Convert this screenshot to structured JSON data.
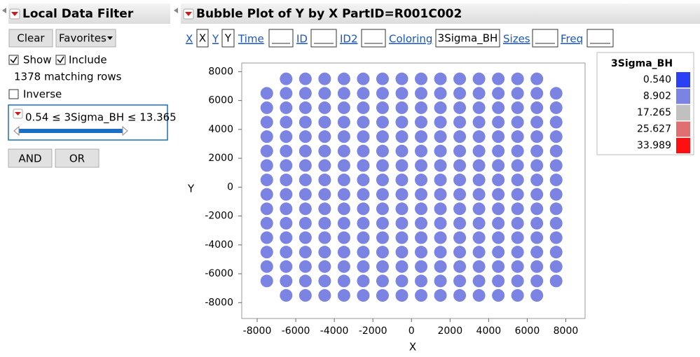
{
  "filter_panel": {
    "title": "Local Data Filter",
    "clear": "Clear",
    "favorites": "Favorites",
    "show": "Show",
    "include": "Include",
    "matching": "1378 matching rows",
    "inverse": "Inverse",
    "condition": "0.54 ≤ 3Sigma_BH ≤ 13.365",
    "and": "AND",
    "or": "OR"
  },
  "toolbar": {
    "roles": [
      {
        "label": "X",
        "value": "X"
      },
      {
        "label": "Y",
        "value": "Y"
      },
      {
        "label": "Time"
      },
      {
        "label": "ID"
      },
      {
        "label": "ID2"
      },
      {
        "label": "Coloring",
        "value": "3Sigma_BH"
      },
      {
        "label": "Sizes"
      },
      {
        "label": "Freq"
      }
    ]
  },
  "chart_data": {
    "type": "bubble",
    "title": "Bubble Plot of Y by X PartID=R001C002",
    "x_label": "X",
    "y_label": "Y",
    "color": "#7b84e2",
    "x": [
      -6500,
      -5500,
      -4500,
      -3500,
      -2500,
      -1500,
      -500,
      500,
      1500,
      2500,
      3500,
      4500,
      5500,
      6500,
      -7500,
      -6500,
      -5500,
      -4500,
      -3500,
      -2500,
      -1500,
      -500,
      500,
      1500,
      2500,
      3500,
      4500,
      5500,
      6500,
      7500,
      -7500,
      -6500,
      -5500,
      -4500,
      -3500,
      -2500,
      -1500,
      -500,
      500,
      1500,
      2500,
      3500,
      4500,
      5500,
      6500,
      7500,
      -7500,
      -6500,
      -5500,
      -4500,
      -3500,
      -2500,
      -1500,
      -500,
      500,
      1500,
      2500,
      3500,
      4500,
      5500,
      6500,
      7500,
      -7500,
      -6500,
      -5500,
      -4500,
      -3500,
      -2500,
      -1500,
      -500,
      500,
      1500,
      2500,
      3500,
      4500,
      5500,
      6500,
      7500,
      -7500,
      -6500,
      -5500,
      -4500,
      -3500,
      -2500,
      -1500,
      -500,
      500,
      1500,
      2500,
      3500,
      4500,
      5500,
      6500,
      7500,
      -7500,
      -6500,
      -5500,
      -4500,
      -3500,
      -2500,
      -1500,
      -500,
      500,
      1500,
      2500,
      3500,
      4500,
      5500,
      6500,
      7500,
      -7500,
      -6500,
      -5500,
      -4500,
      -3500,
      -2500,
      -1500,
      -500,
      500,
      1500,
      2500,
      3500,
      4500,
      5500,
      6500,
      7500,
      -7500,
      -6500,
      -5500,
      -4500,
      -3500,
      -2500,
      -1500,
      -500,
      500,
      1500,
      2500,
      3500,
      4500,
      5500,
      6500,
      7500,
      -7500,
      -6500,
      -5500,
      -4500,
      -3500,
      -2500,
      -1500,
      -500,
      500,
      1500,
      2500,
      3500,
      4500,
      5500,
      6500,
      7500,
      -7500,
      -6500,
      -5500,
      -4500,
      -3500,
      -2500,
      -1500,
      -500,
      500,
      1500,
      2500,
      3500,
      4500,
      5500,
      6500,
      7500,
      -7500,
      -6500,
      -5500,
      -4500,
      -3500,
      -2500,
      -1500,
      -500,
      500,
      1500,
      2500,
      3500,
      4500,
      5500,
      6500,
      7500,
      -7500,
      -6500,
      -5500,
      -4500,
      -3500,
      -2500,
      -1500,
      -500,
      500,
      1500,
      2500,
      3500,
      4500,
      5500,
      6500,
      7500,
      -7500,
      -6500,
      -5500,
      -4500,
      -3500,
      -2500,
      -1500,
      -500,
      500,
      1500,
      2500,
      3500,
      4500,
      5500,
      6500,
      7500,
      -7500,
      -6500,
      -5500,
      -4500,
      -3500,
      -2500,
      -1500,
      -500,
      500,
      1500,
      2500,
      3500,
      4500,
      5500,
      6500,
      7500,
      -6500,
      -5500,
      -4500,
      -3500,
      -2500,
      -1500,
      -500,
      500,
      1500,
      2500,
      3500,
      4500,
      5500,
      6500
    ],
    "values": [
      7500,
      7500,
      7500,
      7500,
      7500,
      7500,
      7500,
      7500,
      7500,
      7500,
      7500,
      7500,
      7500,
      7500,
      6500,
      6500,
      6500,
      6500,
      6500,
      6500,
      6500,
      6500,
      6500,
      6500,
      6500,
      6500,
      6500,
      6500,
      6500,
      6500,
      5500,
      5500,
      5500,
      5500,
      5500,
      5500,
      5500,
      5500,
      5500,
      5500,
      5500,
      5500,
      5500,
      5500,
      5500,
      5500,
      4500,
      4500,
      4500,
      4500,
      4500,
      4500,
      4500,
      4500,
      4500,
      4500,
      4500,
      4500,
      4500,
      4500,
      4500,
      4500,
      3500,
      3500,
      3500,
      3500,
      3500,
      3500,
      3500,
      3500,
      3500,
      3500,
      3500,
      3500,
      3500,
      3500,
      3500,
      3500,
      2500,
      2500,
      2500,
      2500,
      2500,
      2500,
      2500,
      2500,
      2500,
      2500,
      2500,
      2500,
      2500,
      2500,
      2500,
      2500,
      1500,
      1500,
      1500,
      1500,
      1500,
      1500,
      1500,
      1500,
      1500,
      1500,
      1500,
      1500,
      1500,
      1500,
      1500,
      1500,
      500,
      500,
      500,
      500,
      500,
      500,
      500,
      500,
      500,
      500,
      500,
      500,
      500,
      500,
      500,
      500,
      -500,
      -500,
      -500,
      -500,
      -500,
      -500,
      -500,
      -500,
      -500,
      -500,
      -500,
      -500,
      -500,
      -500,
      -500,
      -500,
      -1500,
      -1500,
      -1500,
      -1500,
      -1500,
      -1500,
      -1500,
      -1500,
      -1500,
      -1500,
      -1500,
      -1500,
      -1500,
      -1500,
      -1500,
      -1500,
      -2500,
      -2500,
      -2500,
      -2500,
      -2500,
      -2500,
      -2500,
      -2500,
      -2500,
      -2500,
      -2500,
      -2500,
      -2500,
      -2500,
      -2500,
      -2500,
      -3500,
      -3500,
      -3500,
      -3500,
      -3500,
      -3500,
      -3500,
      -3500,
      -3500,
      -3500,
      -3500,
      -3500,
      -3500,
      -3500,
      -3500,
      -3500,
      -4500,
      -4500,
      -4500,
      -4500,
      -4500,
      -4500,
      -4500,
      -4500,
      -4500,
      -4500,
      -4500,
      -4500,
      -4500,
      -4500,
      -4500,
      -4500,
      -5500,
      -5500,
      -5500,
      -5500,
      -5500,
      -5500,
      -5500,
      -5500,
      -5500,
      -5500,
      -5500,
      -5500,
      -5500,
      -5500,
      -5500,
      -5500,
      -6500,
      -6500,
      -6500,
      -6500,
      -6500,
      -6500,
      -6500,
      -6500,
      -6500,
      -6500,
      -6500,
      -6500,
      -6500,
      -6500,
      -6500,
      -6500,
      -7500,
      -7500,
      -7500,
      -7500,
      -7500,
      -7500,
      -7500,
      -7500,
      -7500,
      -7500,
      -7500,
      -7500,
      -7500,
      -7500
    ],
    "xlim": [
      -8800,
      9000
    ],
    "xticks": [
      -8000,
      -6000,
      -4000,
      -2000,
      0,
      2000,
      4000,
      6000,
      8000
    ],
    "ylim": [
      -9100,
      8600
    ],
    "yticks": [
      -8000,
      -6000,
      -4000,
      -2000,
      0,
      2000,
      4000,
      6000,
      8000
    ],
    "legend": {
      "title": "3Sigma_BH",
      "entries": [
        {
          "label": "0.540",
          "color": "#2b3ff5"
        },
        {
          "label": "8.902",
          "color": "#7b84e2"
        },
        {
          "label": "17.265",
          "color": "#c0c0c0"
        },
        {
          "label": "25.627",
          "color": "#e07070"
        },
        {
          "label": "33.989",
          "color": "#ff1010"
        }
      ]
    }
  }
}
